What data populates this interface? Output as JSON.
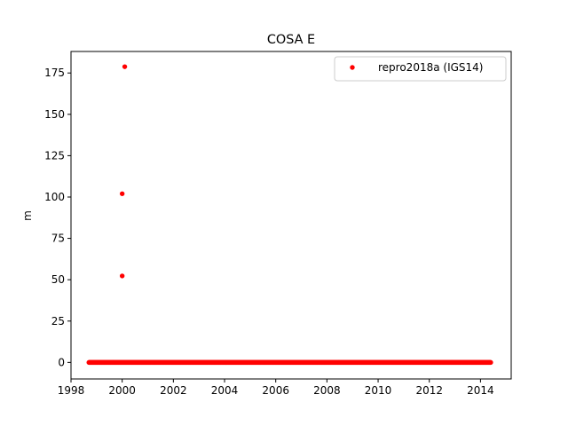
{
  "chart_data": {
    "type": "scatter",
    "title": "COSA E",
    "xlabel": "",
    "ylabel": "m",
    "xlim": [
      1998.0,
      2015.2
    ],
    "ylim": [
      -10,
      188
    ],
    "x_ticks": [
      1998,
      2000,
      2002,
      2004,
      2006,
      2008,
      2010,
      2012,
      2014
    ],
    "y_ticks": [
      0,
      25,
      50,
      75,
      100,
      125,
      150,
      175
    ],
    "grid": false,
    "legend_position": "upper right",
    "series": [
      {
        "name": "repro2018a (IGS14)",
        "color": "#ff0000",
        "marker": "circle",
        "outliers": [
          {
            "x": 2000.0,
            "y": 52.3
          },
          {
            "x": 2000.0,
            "y": 102.0
          },
          {
            "x": 2000.1,
            "y": 178.8
          }
        ],
        "baseline": {
          "x_start": 1998.7,
          "x_end": 2014.4,
          "y": 0.0,
          "step": 0.02
        }
      }
    ]
  }
}
